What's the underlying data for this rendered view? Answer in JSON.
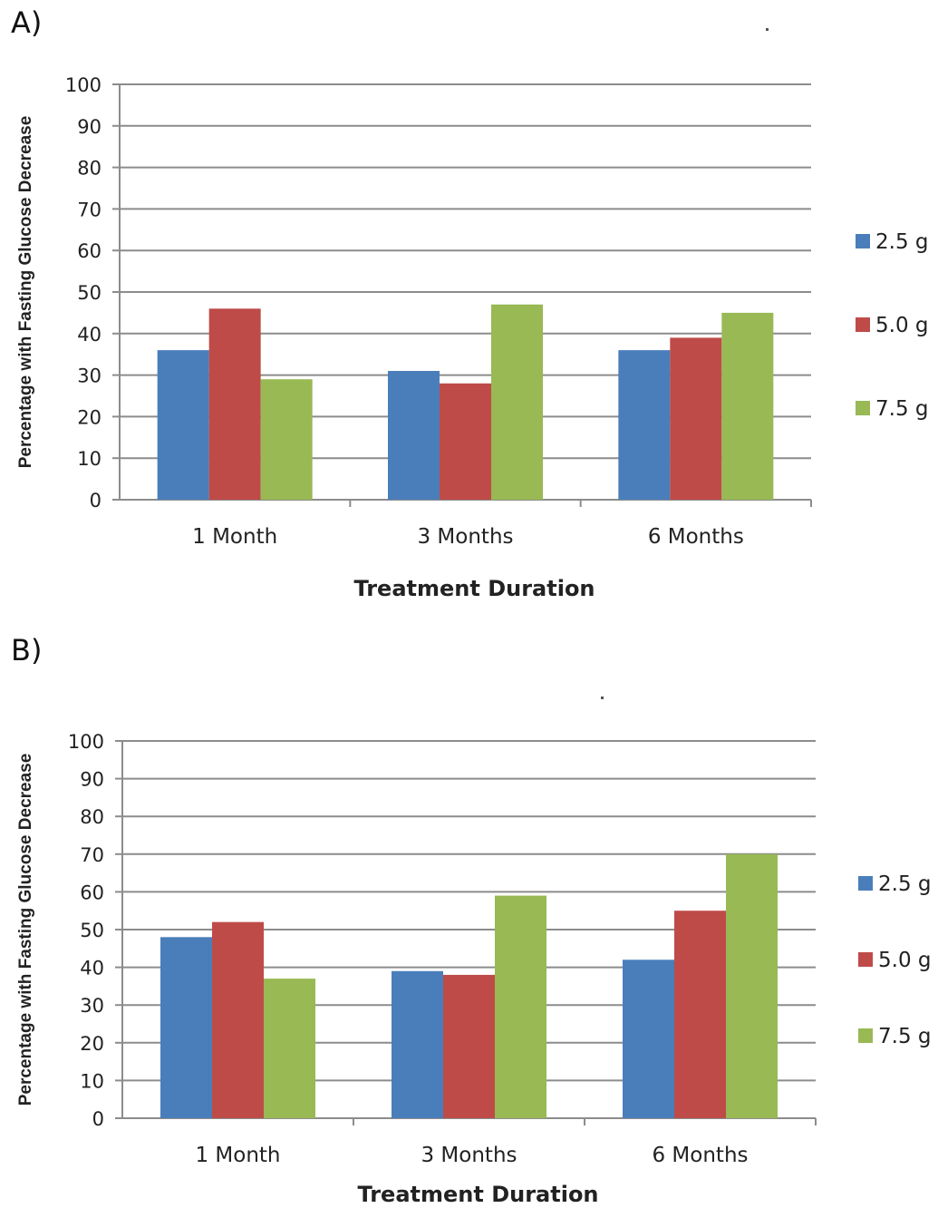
{
  "panels": [
    {
      "label": "A)"
    },
    {
      "label": "B)"
    }
  ],
  "colors": {
    "series": [
      "#4a7ebb",
      "#be4b48",
      "#98b954"
    ],
    "grid": "#8c8c8c",
    "axis": "#8c8c8c"
  },
  "chart_data": [
    {
      "type": "bar",
      "title": "",
      "categories": [
        "1 Month",
        "3 Months",
        "6 Months"
      ],
      "series": [
        {
          "name": "2.5 g",
          "values": [
            36,
            31,
            36
          ]
        },
        {
          "name": "5.0 g",
          "values": [
            46,
            28,
            39
          ]
        },
        {
          "name": "7.5 g",
          "values": [
            29,
            47,
            45
          ]
        }
      ],
      "xlabel": "Treatment Duration",
      "ylabel": "Percentage with Fasting Glucose Decrease",
      "ylim": [
        0,
        100
      ],
      "yticks": [
        0,
        10,
        20,
        30,
        40,
        50,
        60,
        70,
        80,
        90,
        100
      ],
      "grid": true,
      "legend": "right"
    },
    {
      "type": "bar",
      "title": "",
      "categories": [
        "1 Month",
        "3 Months",
        "6 Months"
      ],
      "series": [
        {
          "name": "2.5 g",
          "values": [
            48,
            39,
            42
          ]
        },
        {
          "name": "5.0 g",
          "values": [
            52,
            38,
            55
          ]
        },
        {
          "name": "7.5 g",
          "values": [
            37,
            59,
            70
          ]
        }
      ],
      "xlabel": "Treatment Duration",
      "ylabel": "Percentage with Fasting Glucose Decrease",
      "ylim": [
        0,
        100
      ],
      "yticks": [
        0,
        10,
        20,
        30,
        40,
        50,
        60,
        70,
        80,
        90,
        100
      ],
      "grid": true,
      "legend": "right"
    }
  ]
}
